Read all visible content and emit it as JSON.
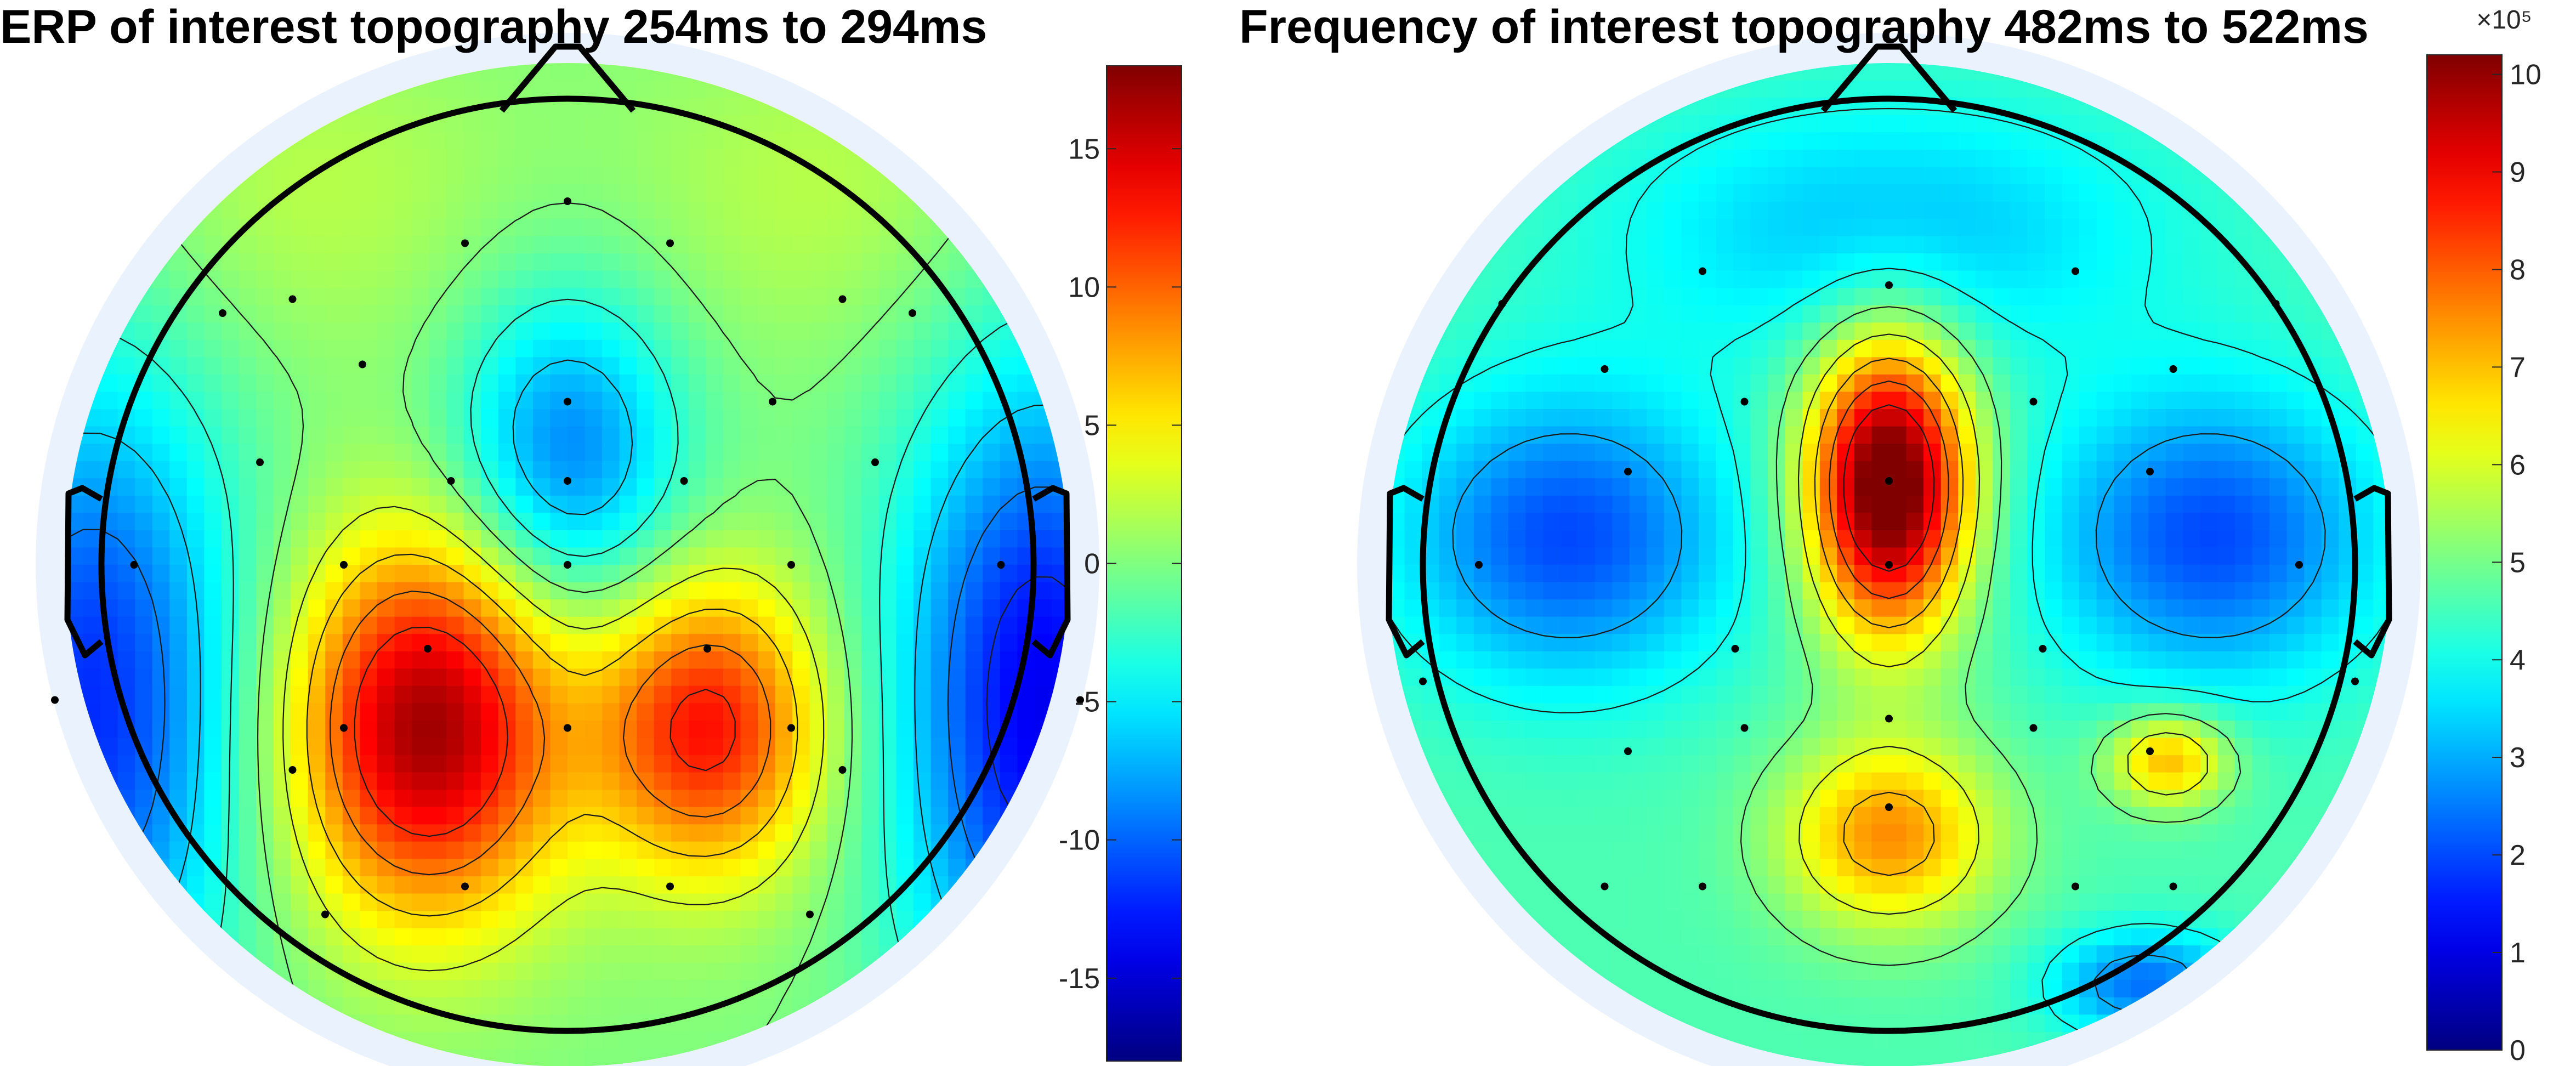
{
  "chart_data": [
    {
      "type": "heatmap",
      "subtype": "topographic-scalp-map",
      "title": "ERP of interest topography 254ms to 294ms",
      "colormap": "jet",
      "colorbar": {
        "limits": [
          -18,
          18
        ],
        "ticks": [
          -15,
          -10,
          -5,
          0,
          5,
          10,
          15
        ],
        "tick_labels": [
          "-15",
          "-10",
          "-5",
          "0",
          "5",
          "10",
          "15"
        ],
        "exponent_label": ""
      },
      "electrodes": [
        [
          0,
          0.78
        ],
        [
          -0.22,
          0.69
        ],
        [
          0.22,
          0.69
        ],
        [
          -0.59,
          0.57
        ],
        [
          0.59,
          0.57
        ],
        [
          -0.44,
          0.43
        ],
        [
          0,
          0.35
        ],
        [
          0.44,
          0.35
        ],
        [
          -0.66,
          0.22
        ],
        [
          -0.25,
          0.18
        ],
        [
          0,
          0.18
        ],
        [
          0.25,
          0.18
        ],
        [
          0.66,
          0.22
        ],
        [
          -0.93,
          0
        ],
        [
          -0.48,
          0
        ],
        [
          0,
          0
        ],
        [
          0.48,
          0
        ],
        [
          0.93,
          0
        ],
        [
          -0.3,
          -0.18
        ],
        [
          0.3,
          -0.18
        ],
        [
          -0.48,
          -0.35
        ],
        [
          0,
          -0.35
        ],
        [
          0.48,
          -0.35
        ],
        [
          -0.59,
          -0.44
        ],
        [
          0.59,
          -0.44
        ],
        [
          -1.1,
          -0.29
        ],
        [
          1.1,
          -0.29
        ],
        [
          -0.22,
          -0.69
        ],
        [
          0.22,
          -0.69
        ],
        [
          -0.52,
          -0.75
        ],
        [
          0.52,
          -0.75
        ],
        [
          -0.74,
          0.54
        ],
        [
          0.74,
          0.54
        ]
      ],
      "sources": [
        {
          "x": -0.3,
          "y": -0.35,
          "amp": 17,
          "sx": 0.2,
          "sy": 0.28
        },
        {
          "x": 0.3,
          "y": -0.35,
          "amp": 13,
          "sx": 0.17,
          "sy": 0.22
        },
        {
          "x": 0,
          "y": 0.24,
          "amp": -9,
          "sx": 0.17,
          "sy": 0.24
        },
        {
          "x": 1.02,
          "y": -0.3,
          "amp": -14,
          "sx": 0.22,
          "sy": 0.5
        },
        {
          "x": -1.02,
          "y": -0.3,
          "amp": -12,
          "sx": 0.22,
          "sy": 0.5
        },
        {
          "x": -0.55,
          "y": 0.8,
          "amp": 2,
          "sx": 0.3,
          "sy": 0.25
        },
        {
          "x": 0.55,
          "y": 0.8,
          "amp": 2,
          "sx": 0.3,
          "sy": 0.25
        }
      ],
      "baseline": 0,
      "contour_levels": [
        -12,
        -9,
        -6,
        -3,
        0,
        3,
        6,
        9,
        12
      ]
    },
    {
      "type": "heatmap",
      "subtype": "topographic-scalp-map",
      "title": "Frequency of interest topography 482ms to 522ms",
      "colormap": "jet",
      "colorbar": {
        "limits": [
          0,
          10.2
        ],
        "ticks": [
          0,
          1,
          2,
          3,
          4,
          5,
          6,
          7,
          8,
          9,
          10
        ],
        "tick_labels": [
          "0",
          "1",
          "2",
          "3",
          "4",
          "5",
          "6",
          "7",
          "8",
          "9",
          "10"
        ],
        "exponent_label": "×10⁵"
      },
      "electrodes": [
        [
          0,
          0.6
        ],
        [
          -0.4,
          0.63
        ],
        [
          0.4,
          0.63
        ],
        [
          -0.61,
          0.42
        ],
        [
          0.61,
          0.42
        ],
        [
          -0.31,
          0.35
        ],
        [
          0.31,
          0.35
        ],
        [
          0,
          0.18
        ],
        [
          -0.56,
          0.2
        ],
        [
          0.56,
          0.2
        ],
        [
          0,
          0
        ],
        [
          -0.88,
          0
        ],
        [
          0.88,
          0
        ],
        [
          -0.33,
          -0.18
        ],
        [
          0.33,
          -0.18
        ],
        [
          0,
          -0.33
        ],
        [
          -0.31,
          -0.35
        ],
        [
          0.31,
          -0.35
        ],
        [
          -0.56,
          -0.4
        ],
        [
          0.56,
          -0.4
        ],
        [
          0,
          -0.52
        ],
        [
          -0.4,
          -0.69
        ],
        [
          0.4,
          -0.69
        ],
        [
          -0.83,
          0.56
        ],
        [
          0.83,
          0.56
        ],
        [
          -0.61,
          -0.69
        ],
        [
          0.61,
          -0.69
        ],
        [
          -1.0,
          -0.25
        ],
        [
          1.0,
          -0.25
        ]
      ],
      "sources": [
        {
          "x": 0,
          "y": 0.17,
          "amp": 6.4,
          "sx": 0.12,
          "sy": 0.22
        },
        {
          "x": -0.69,
          "y": 0.06,
          "amp": -2.6,
          "sx": 0.25,
          "sy": 0.22
        },
        {
          "x": 0.69,
          "y": 0.06,
          "amp": -2.6,
          "sx": 0.25,
          "sy": 0.22
        },
        {
          "x": 0,
          "y": -0.58,
          "amp": 2.9,
          "sx": 0.16,
          "sy": 0.14
        },
        {
          "x": 0.6,
          "y": -0.42,
          "amp": 2.6,
          "sx": 0.09,
          "sy": 0.07
        },
        {
          "x": 0.55,
          "y": -0.9,
          "amp": -2.2,
          "sx": 0.14,
          "sy": 0.08
        },
        {
          "x": 0,
          "y": 0.72,
          "amp": -1.4,
          "sx": 0.42,
          "sy": 0.2
        }
      ],
      "baseline": 4.6,
      "contour_levels": [
        2,
        3,
        4,
        5,
        6,
        7,
        8,
        9
      ]
    }
  ]
}
